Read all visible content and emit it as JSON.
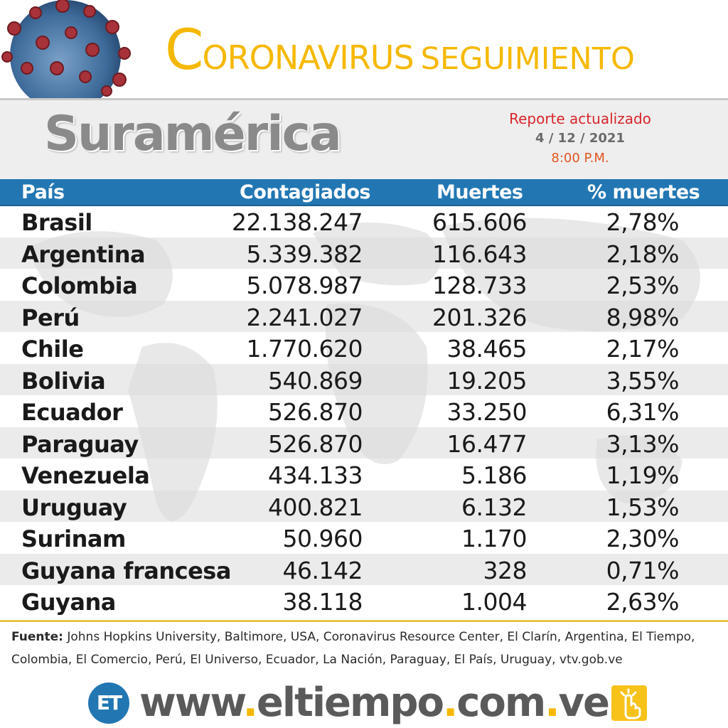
{
  "header": {
    "title_initial": "C",
    "title_rest": "ORONAVIRUS",
    "title_second": "SEGUIMIENTO",
    "virus_icon": "coronavirus-icon"
  },
  "subheader": {
    "region": "Suramérica",
    "report_label": "Reporte actualizado",
    "report_date": "4 / 12 / 2021",
    "report_time": "8:00 P.M."
  },
  "table": {
    "headers": [
      "País",
      "Contagiados",
      "Muertes",
      "% muertes"
    ],
    "rows": [
      {
        "country": "Brasil",
        "cases": "22.138.247",
        "deaths": "615.606",
        "pct": "2,78%"
      },
      {
        "country": "Argentina",
        "cases": "5.339.382",
        "deaths": "116.643",
        "pct": "2,18%"
      },
      {
        "country": "Colombia",
        "cases": "5.078.987",
        "deaths": "128.733",
        "pct": "2,53%"
      },
      {
        "country": "Perú",
        "cases": "2.241.027",
        "deaths": "201.326",
        "pct": "8,98%"
      },
      {
        "country": "Chile",
        "cases": "1.770.620",
        "deaths": "38.465",
        "pct": "2,17%"
      },
      {
        "country": "Bolivia",
        "cases": "540.869",
        "deaths": "19.205",
        "pct": "3,55%"
      },
      {
        "country": "Ecuador",
        "cases": "526.870",
        "deaths": "33.250",
        "pct": "6,31%"
      },
      {
        "country": "Paraguay",
        "cases": "526.870",
        "deaths": "16.477",
        "pct": "3,13%"
      },
      {
        "country": "Venezuela",
        "cases": "434.133",
        "deaths": "5.186",
        "pct": "1,19%"
      },
      {
        "country": "Uruguay",
        "cases": "400.821",
        "deaths": "6.132",
        "pct": "1,53%"
      },
      {
        "country": "Surinam",
        "cases": "50.960",
        "deaths": "1.170",
        "pct": "2,30%"
      },
      {
        "country": "Guyana francesa",
        "cases": "46.142",
        "deaths": "328",
        "pct": "0,71%"
      },
      {
        "country": "Guyana",
        "cases": "38.118",
        "deaths": "1.004",
        "pct": "2,63%"
      }
    ]
  },
  "source": {
    "label": "Fuente:",
    "text": " Johns Hopkins University, Baltimore, USA, Coronavirus Resource Center,  El Clarín, Argentina, El Tiempo, Colombia, El Comercio, Perú, El Universo, Ecuador, La Nación, Paraguay, El País, Uruguay, vtv.gob.ve"
  },
  "footer": {
    "logo_text": "ET",
    "url_www": "www",
    "url_domain": "eltiempo",
    "url_com": "com",
    "url_ve": "ve",
    "url_dot": ".",
    "click_icon": "hand-pointer-icon"
  },
  "colors": {
    "accent_yellow": "#f5b800",
    "header_blue": "#2277b3",
    "region_gray": "#8a8a8a",
    "report_red": "#d7262b"
  }
}
